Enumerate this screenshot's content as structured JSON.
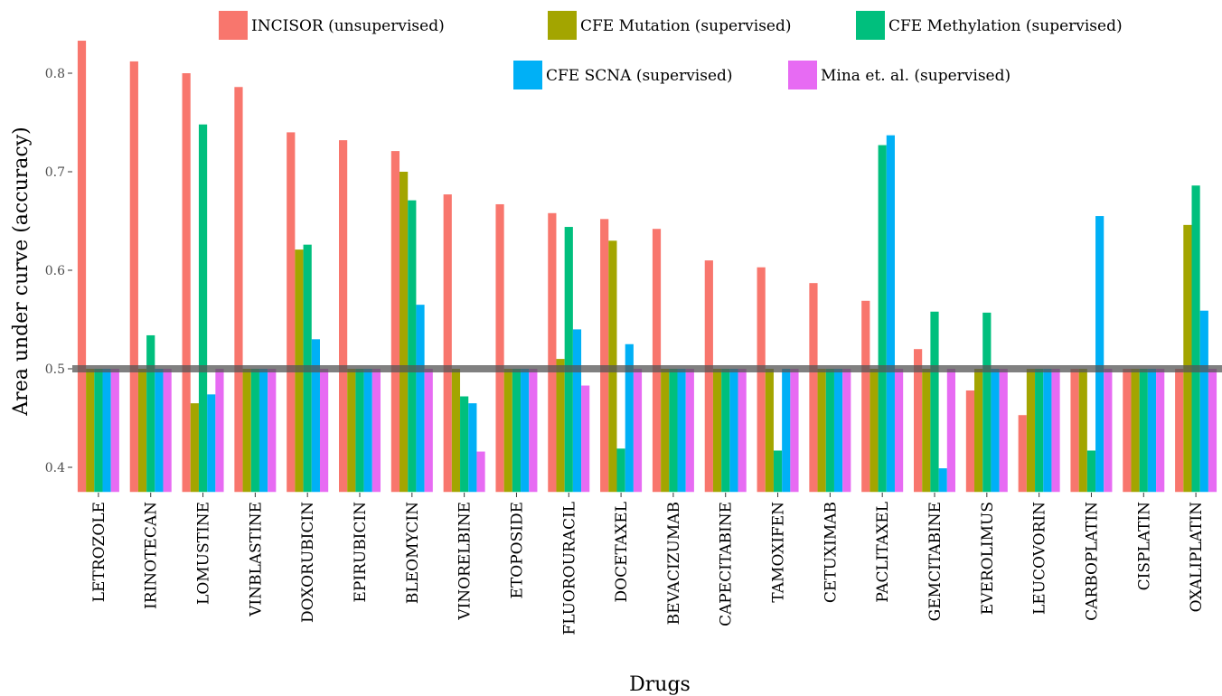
{
  "chart_data": {
    "type": "bar",
    "title": "",
    "xlabel": "Drugs",
    "ylabel": "Area under curve (accuracy)",
    "ylim": [
      0.375,
      0.835
    ],
    "yticks": [
      0.4,
      0.5,
      0.6,
      0.7,
      0.8
    ],
    "ytick_labels": [
      "0.4",
      "0.5",
      "0.6",
      "0.7",
      "0.8"
    ],
    "grid": false,
    "legend_position": "top",
    "reference_line": {
      "value": 0.5,
      "color": "#555555"
    },
    "categories": [
      "LETROZOLE",
      "IRINOTECAN",
      "LOMUSTINE",
      "VINBLASTINE",
      "DOXORUBICIN",
      "EPIRUBICIN",
      "BLEOMYCIN",
      "VINORELBINE",
      "ETOPOSIDE",
      "FLUOROURACIL",
      "DOCETAXEL",
      "BEVACIZUMAB",
      "CAPECITABINE",
      "TAMOXIFEN",
      "CETUXIMAB",
      "PACLITAXEL",
      "GEMCITABINE",
      "EVEROLIMUS",
      "LEUCOVORIN",
      "CARBOPLATIN",
      "CISPLATIN",
      "OXALIPLATIN"
    ],
    "series": [
      {
        "name": "INCISOR (unsupervised)",
        "color": "#F8766D",
        "values": [
          0.833,
          0.812,
          0.8,
          0.786,
          0.74,
          0.732,
          0.721,
          0.677,
          0.667,
          0.658,
          0.652,
          0.642,
          0.61,
          0.603,
          0.587,
          0.569,
          0.52,
          0.478,
          0.453,
          0.5,
          0.5,
          0.5
        ]
      },
      {
        "name": "CFE Mutation (supervised)",
        "color": "#A3A500",
        "values": [
          0.5,
          0.5,
          0.465,
          0.5,
          0.621,
          0.5,
          0.7,
          0.5,
          0.5,
          0.51,
          0.63,
          0.5,
          0.5,
          0.5,
          0.5,
          0.5,
          0.5,
          0.5,
          0.5,
          0.5,
          0.5,
          0.646
        ]
      },
      {
        "name": "CFE Methylation (supervised)",
        "color": "#00BF7D",
        "values": [
          0.5,
          0.534,
          0.748,
          0.5,
          0.626,
          0.5,
          0.671,
          0.472,
          0.5,
          0.644,
          0.419,
          0.5,
          0.5,
          0.417,
          0.5,
          0.727,
          0.558,
          0.557,
          0.5,
          0.417,
          0.5,
          0.686
        ]
      },
      {
        "name": "CFE SCNA (supervised)",
        "color": "#00B0F6",
        "values": [
          0.5,
          0.5,
          0.474,
          0.5,
          0.53,
          0.5,
          0.565,
          0.465,
          0.5,
          0.54,
          0.525,
          0.5,
          0.5,
          0.5,
          0.5,
          0.737,
          0.399,
          0.5,
          0.5,
          0.655,
          0.5,
          0.559
        ]
      },
      {
        "name": "Mina et. al. (supervised)",
        "color": "#E76BF3",
        "values": [
          0.5,
          0.5,
          0.5,
          0.5,
          0.5,
          0.5,
          0.5,
          0.416,
          0.5,
          0.483,
          0.5,
          0.5,
          0.5,
          0.5,
          0.5,
          0.5,
          0.5,
          0.5,
          0.5,
          0.5,
          0.5,
          0.5
        ]
      }
    ]
  }
}
